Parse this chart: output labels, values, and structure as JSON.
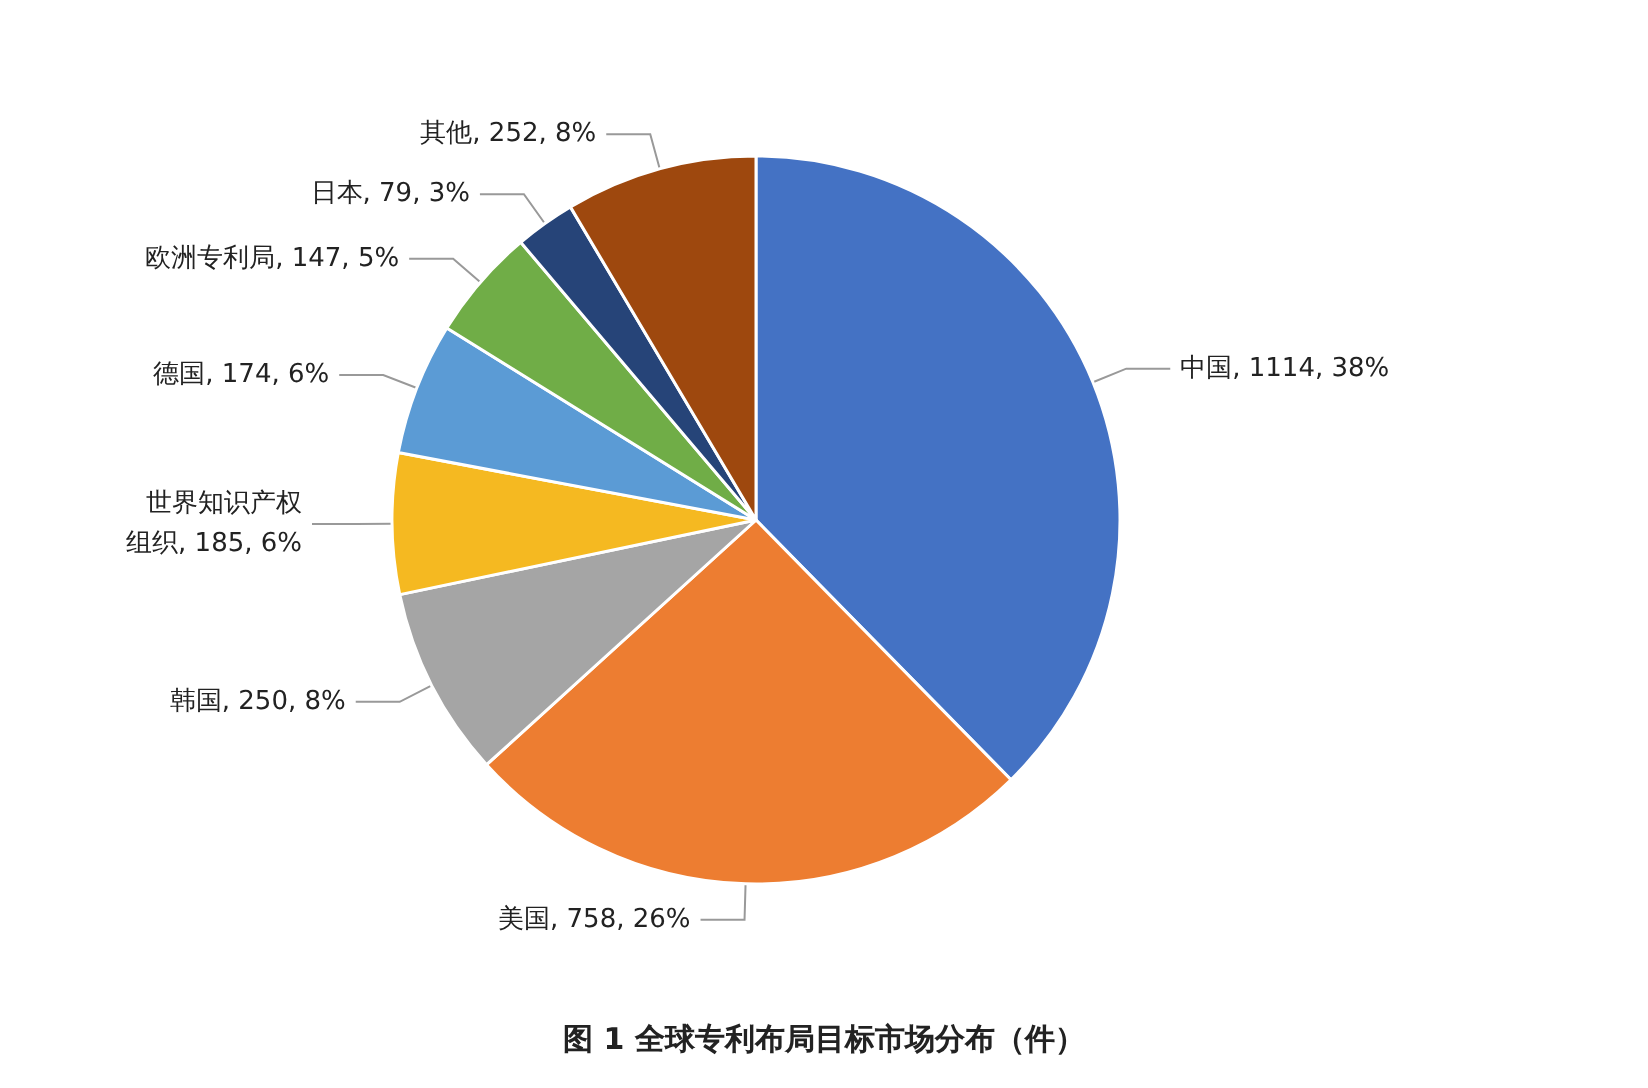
{
  "chart_data": {
    "type": "pie",
    "title": "图 1 全球专利布局目标市场分布（件）",
    "categories": [
      "中国",
      "美国",
      "韩国",
      "世界知识产权组织",
      "德国",
      "欧洲专利局",
      "日本",
      "其他"
    ],
    "values": [
      1114,
      758,
      250,
      185,
      174,
      147,
      79,
      252
    ],
    "value_labels": [
      "1114, 38%",
      "758, 26%",
      "250, 8%",
      "185, 6%",
      "174, 6%",
      "147, 5%",
      "79, 3%",
      "252, 8%"
    ],
    "colors": [
      "#4472c4",
      "#ed7d31",
      "#a5a5a5",
      "#f5b921",
      "#5b9bd5",
      "#70ad47",
      "#264478",
      "#9e480e"
    ],
    "legend": false
  }
}
